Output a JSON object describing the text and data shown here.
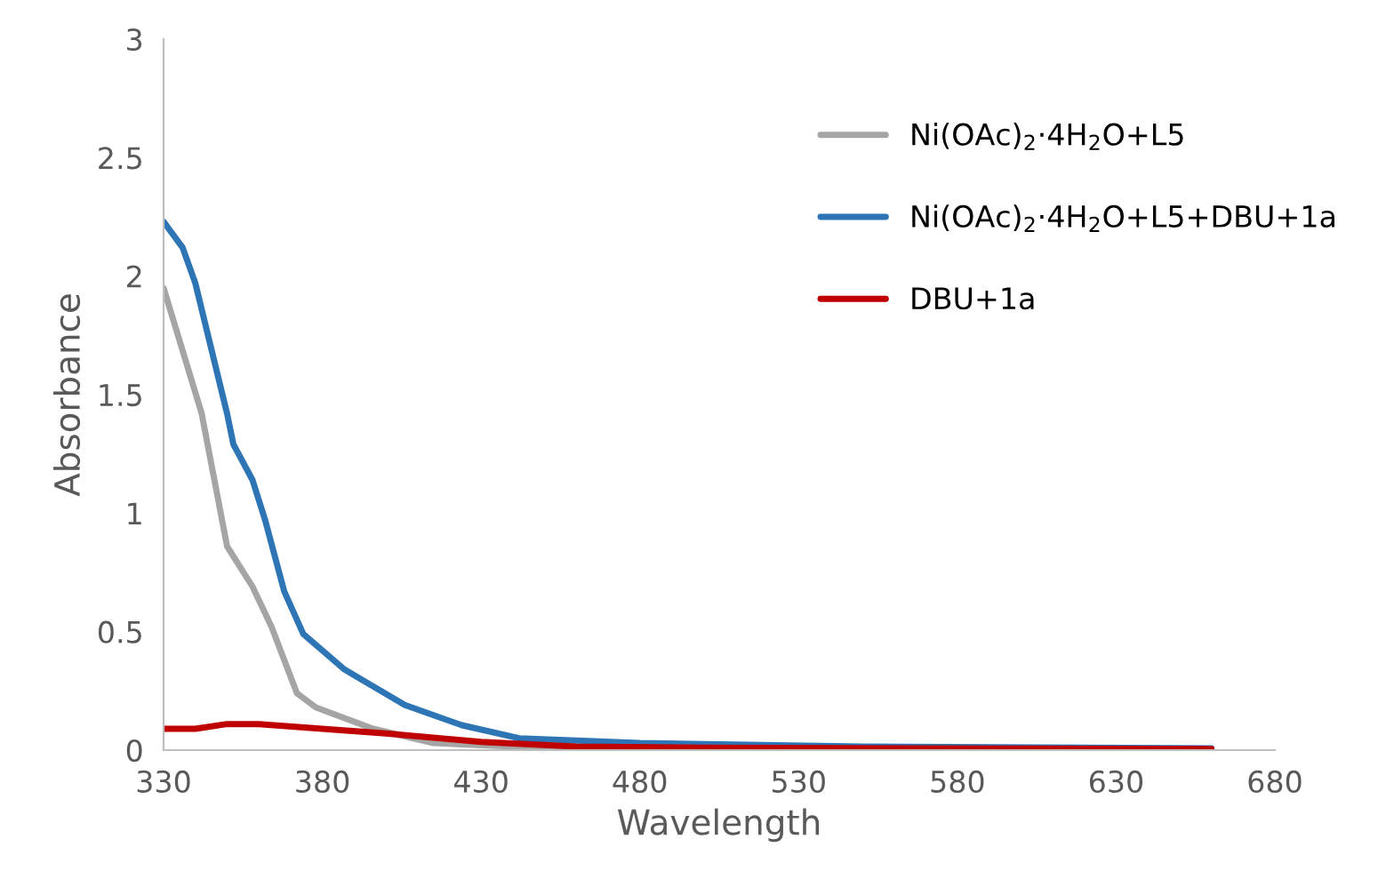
{
  "chart_data": {
    "type": "line",
    "xlabel": "Wavelength",
    "ylabel": "Absorbance",
    "xlim": [
      330,
      680
    ],
    "xticks": [
      330,
      380,
      430,
      480,
      530,
      580,
      630,
      680
    ],
    "ylim": [
      0,
      3
    ],
    "yticks": [
      0,
      0.5,
      1,
      1.5,
      2,
      2.5,
      3
    ],
    "grid": false,
    "legend": "top right",
    "series": [
      {
        "name": "Ni(OAc)$_{2}$·4H$_{2}$O+L5",
        "color": "#a5a5a5",
        "x": [
          330,
          342,
          350,
          358,
          364,
          372,
          378,
          396,
          415,
          440,
          480,
          550,
          660
        ],
        "values": [
          1.95,
          1.42,
          0.86,
          0.69,
          0.52,
          0.24,
          0.18,
          0.09,
          0.03,
          0.015,
          0.01,
          0.008,
          0.005
        ]
      },
      {
        "name": "Ni(OAc)$_{2}$·4H$_{2}$O+L5+DBU+1a",
        "color": "#2e75b6",
        "x": [
          330,
          336,
          340,
          350,
          352,
          358,
          362,
          368,
          374,
          387,
          406,
          424,
          442,
          480,
          550,
          660
        ],
        "values": [
          2.23,
          2.12,
          1.97,
          1.42,
          1.29,
          1.14,
          0.97,
          0.67,
          0.49,
          0.34,
          0.19,
          0.105,
          0.05,
          0.03,
          0.015,
          0.008
        ]
      },
      {
        "name": "DBU+1a",
        "color": "#c00000",
        "x": [
          330,
          340,
          350,
          360,
          380,
          400,
          430,
          460,
          500,
          660
        ],
        "values": [
          0.09,
          0.09,
          0.11,
          0.11,
          0.09,
          0.07,
          0.035,
          0.015,
          0.01,
          0.005
        ]
      }
    ]
  }
}
